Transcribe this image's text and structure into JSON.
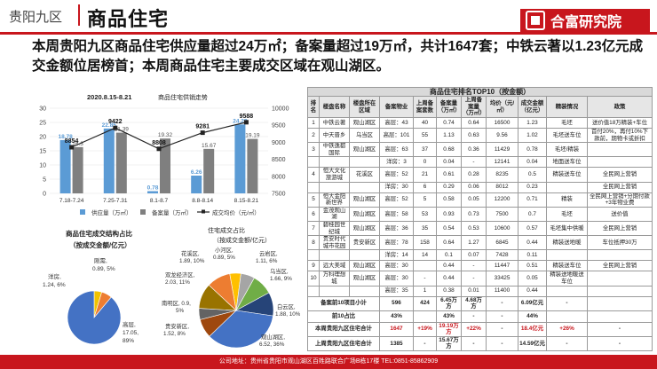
{
  "header": {
    "district": "贵阳九区",
    "title": "商品住宅",
    "logo": "合富研究院"
  },
  "summary": "本周贵阳九区商品住宅供应量超过24万㎡；备案量超过19万㎡，共计1647套；中铁云著以1.23亿元成交金额位居榜首；本周商品住宅主要成交区域在观山湖区。",
  "chart_data": [
    {
      "type": "bar",
      "title": "商品住宅供销走势",
      "date_range": "2020.8.15-8.21",
      "categories": [
        "7.18-7.24",
        "7.25-7.31",
        "8.1-8.7",
        "8.8-8.14",
        "8.15-8.21"
      ],
      "series": [
        {
          "name": "供应量（万㎡）",
          "color": "#5b9bd5",
          "values": [
            18.78,
            22.85,
            0.78,
            6.26,
            24.28
          ]
        },
        {
          "name": "备案量（万㎡）",
          "color": "#7f7f7f",
          "values": [
            16.3,
            21.39,
            19.32,
            15.67,
            19.19
          ]
        },
        {
          "name": "成交均价（元/㎡）",
          "color": "#222222",
          "type": "line",
          "axis": "right",
          "values": [
            8854,
            9422,
            8808,
            9281,
            9588
          ]
        }
      ],
      "ylim": [
        0,
        30
      ],
      "yticks": [
        "0",
        "5",
        "10",
        "15",
        "20",
        "25",
        "30"
      ],
      "y2lim": [
        7500,
        10000
      ],
      "y2ticks": [
        "7500",
        "8000",
        "8500",
        "9000",
        "9500",
        "10000"
      ]
    },
    {
      "type": "pie",
      "title": "商品住宅成交结构占比（按成交金额/亿元）",
      "slices": [
        {
          "label": "刚需",
          "value": 0.89,
          "percent": "5%",
          "color": "#f2c200"
        },
        {
          "label": "洋房",
          "value": 1.24,
          "percent": "6%",
          "color": "#ed7d31"
        },
        {
          "label": "高层",
          "value": 17.05,
          "percent": "89%",
          "color": "#4472c4"
        }
      ]
    },
    {
      "type": "pie",
      "title": "住宅成交占比（按成交金额/亿元）",
      "slices": [
        {
          "label": "小河区",
          "value": 0.89,
          "percent": "5%",
          "color": "#ffc000"
        },
        {
          "label": "云岩区",
          "value": 1.11,
          "percent": "6%",
          "color": "#a5a5a5"
        },
        {
          "label": "乌当区",
          "value": 1.66,
          "percent": "9%",
          "color": "#70ad47"
        },
        {
          "label": "白云区",
          "value": 1.88,
          "percent": "10%",
          "color": "#264478"
        },
        {
          "label": "观山湖区",
          "value": 6.52,
          "percent": "36%",
          "color": "#4472c4"
        },
        {
          "label": "贵安新区",
          "value": 1.52,
          "percent": "8%",
          "color": "#9e480e"
        },
        {
          "label": "南明区",
          "value": 0.9,
          "percent": "5%",
          "color": "#636363"
        },
        {
          "label": "双龙经济区",
          "value": 2.03,
          "percent": "11%",
          "color": "#997300"
        },
        {
          "label": "花溪区",
          "value": 1.89,
          "percent": "10%",
          "color": "#ed7d31"
        }
      ]
    }
  ],
  "pie_labels": {
    "pie1": [
      "刚需,",
      "0.89, 5%",
      "洋房,",
      "1.24, 6%",
      "高层,",
      "17.05,",
      "89%"
    ],
    "pie2": [
      "小河区,",
      "0.89, 5%",
      "云岩区,",
      "1.11, 6%",
      "乌当区,",
      "1.66, 9%",
      "白云区,",
      "1.88, 10%",
      "观山湖区,",
      "6.52, 36%",
      "贵安新区,",
      "1.52, 8%",
      "南明区, 0.9,",
      "5%",
      "双龙经济区,",
      "2.03, 11%",
      "花溪区,",
      "1.89, 10%"
    ]
  },
  "table": {
    "title": "商品住宅排名TOP10（按金额）",
    "headers": [
      "排名",
      "楼盘名称",
      "楼盘所在区域",
      "备案物业",
      "上周备案套数",
      "备案量（万㎡）",
      "上周备案量（万㎡）",
      "均价（元/㎡）",
      "成交金额（亿元）",
      "精装情况",
      "政策"
    ],
    "rows": [
      [
        "1",
        "中铁云著",
        "观山湖区",
        "高层：43",
        "40",
        "0.74",
        "0.64",
        "16500",
        "1.23",
        "毛坯",
        "送价值18万精装+车位"
      ],
      [
        "2",
        "中天晋乡",
        "乌当区",
        "高层：101",
        "55",
        "1.13",
        "0.63",
        "9.56",
        "1.02",
        "毛坯送车位",
        "首付20%，再付10%下款前，期物卡或折扣"
      ],
      [
        "3",
        "中铁逸都国际",
        "观山湖区",
        "高层：63",
        "37",
        "0.68",
        "0.36",
        "11429",
        "0.78",
        "毛坯/精装",
        ""
      ],
      [
        "",
        "",
        "",
        "洋房：3",
        "0",
        "0.04",
        "-",
        "12141",
        "0.04",
        "地面送车位",
        ""
      ],
      [
        "4",
        "恒大文化旅游城",
        "花溪区",
        "高层：52",
        "21",
        "0.61",
        "0.28",
        "8235",
        "0.5",
        "精装送车位",
        "全民网上营销"
      ],
      [
        "",
        "",
        "",
        "洋房：30",
        "6",
        "0.29",
        "0.06",
        "8012",
        "0.23",
        "",
        "全民网上营销"
      ],
      [
        "5",
        "恒大金阳新世界",
        "观山湖区",
        "高层：52",
        "5",
        "0.58",
        "0.05",
        "12200",
        "0.71",
        "精装",
        "全民网上营销+分期付款+3年物业费"
      ],
      [
        "6",
        "金茂观山湖",
        "观山湖区",
        "高层：58",
        "53",
        "0.93",
        "0.73",
        "7500",
        "0.7",
        "毛坯",
        "送价值"
      ],
      [
        "7",
        "碧桂园世纪城",
        "观山湖区",
        "高层：36",
        "35",
        "0.54",
        "0.53",
        "10600",
        "0.57",
        "毛坯集中供暖",
        "全民网上营销"
      ],
      [
        "8",
        "贵安时代城市花园",
        "贵安新区",
        "高层：78",
        "158",
        "0.64",
        "1.27",
        "6845",
        "0.44",
        "精装送地暖",
        "车位抵押30万"
      ],
      [
        "",
        "",
        "",
        "洋房：14",
        "14",
        "0.1",
        "0.07",
        "7428",
        "0.11",
        "",
        ""
      ],
      [
        "9",
        "远大美域",
        "观山湖区",
        "高层：30",
        "",
        "0.44",
        "-",
        "11447",
        "0.51",
        "精装送车位",
        "全民网上营销"
      ],
      [
        "10",
        "万科理想城",
        "观山湖区",
        "高层：30",
        "-",
        "0.44",
        "-",
        "33425",
        "0.05",
        "精装送地暖送车位",
        ""
      ],
      [
        "",
        "",
        "",
        "高层：35",
        "1",
        "0.38",
        "0.01",
        "11400",
        "0.44",
        "",
        ""
      ]
    ],
    "summary_rows": [
      [
        "备案前10项目小计",
        "596",
        "424",
        "6.45万方",
        "4.68万方",
        "-",
        "6.09亿元",
        "-",
        ""
      ],
      [
        "前10占比",
        "43%",
        "",
        "43%",
        "-",
        "-",
        "44%",
        "",
        ""
      ],
      [
        "本周贵阳九区住宅合计",
        "1647",
        "+19%",
        "19.19万方",
        "+22%",
        "-",
        "18.4亿元",
        "+26%",
        "-"
      ],
      [
        "上周贵阳九区住宅合计",
        "1385",
        "-",
        "15.67万方",
        "-",
        "-",
        "14.59亿元",
        "-",
        "-"
      ]
    ]
  },
  "footer": "公司地址：贵州省贵阳市观山湖区百姓路联合广场B栋17楼    TEL:0851-85862909"
}
